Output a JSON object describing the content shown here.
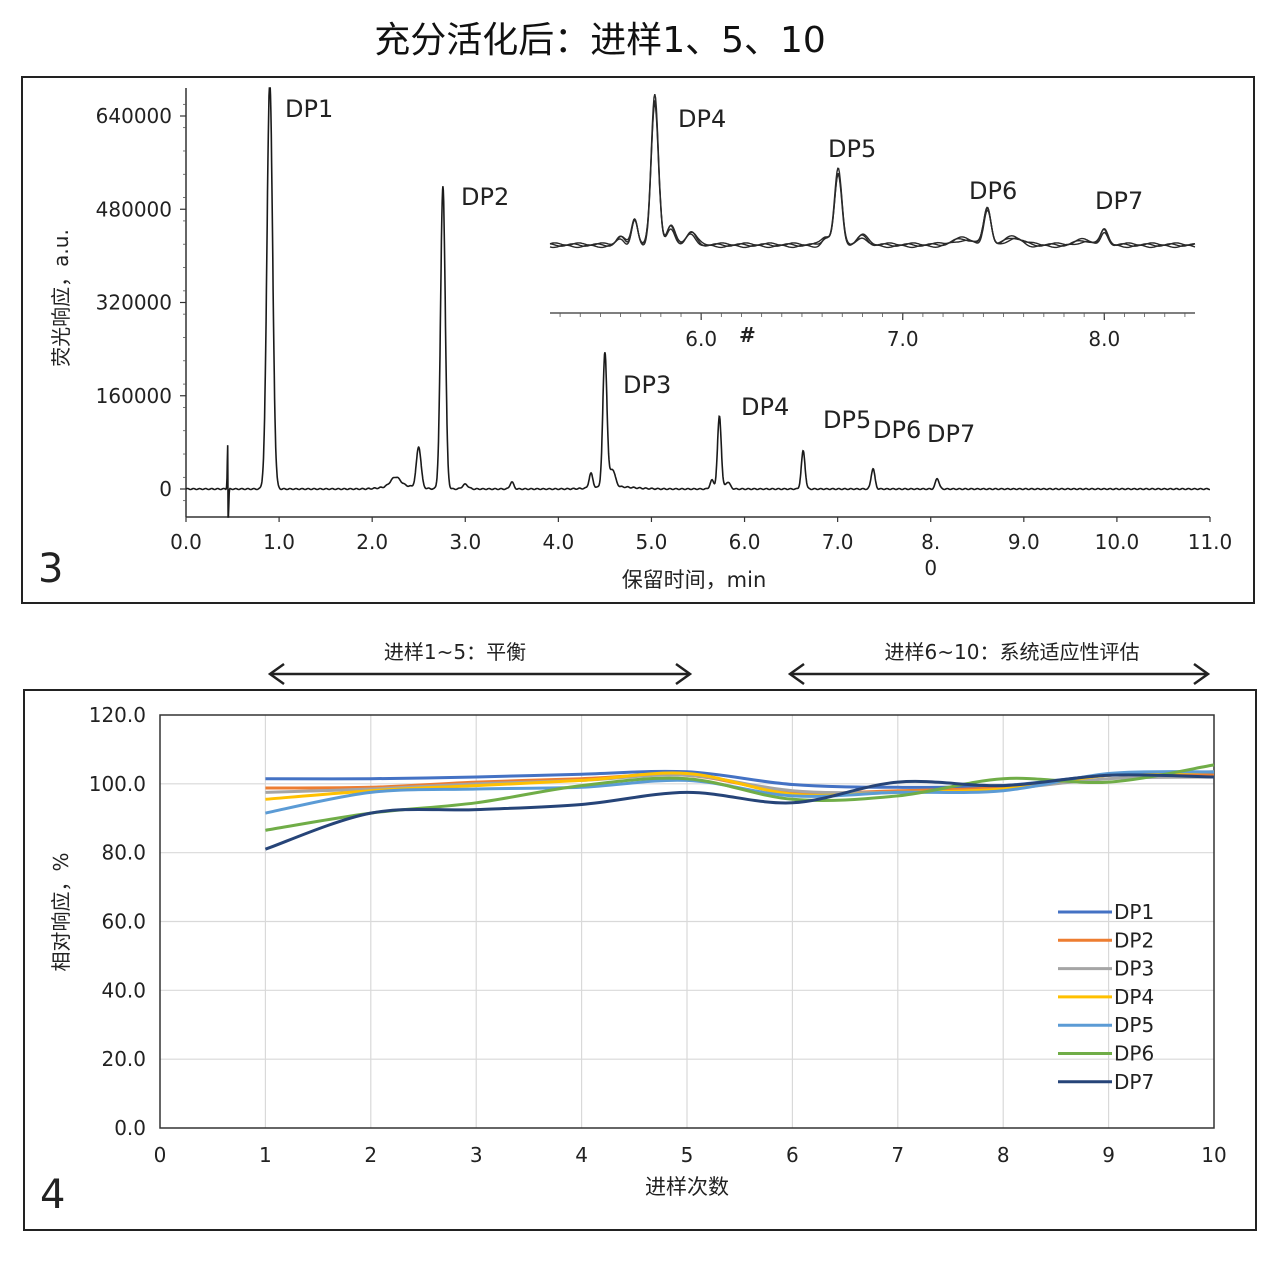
{
  "title": "充分活化后：进样1、5、10",
  "chart_data": [
    {
      "type": "line",
      "panel_label": "3",
      "xlabel": "保留时间，min",
      "ylabel": "荧光响应，a.u.",
      "xlim": [
        0,
        11
      ],
      "ylim": [
        -30000,
        700000
      ],
      "x_ticks": [
        "0.0",
        "1.0",
        "2.0",
        "3.0",
        "4.0",
        "5.0",
        "6.0",
        "7.0",
        "8.\n0",
        "9.0",
        "10.0",
        "11.0"
      ],
      "y_ticks": [
        "640000",
        "480000",
        "320000",
        "160000",
        "0"
      ],
      "y_tick_values": [
        640000,
        480000,
        320000,
        160000,
        0
      ],
      "baseline": 0,
      "peaks": [
        {
          "label": "DP1",
          "x": 0.9,
          "y": 700000,
          "width": 0.03
        },
        {
          "label": "DP2",
          "x": 2.76,
          "y": 520000,
          "width": 0.025
        },
        {
          "label": "DP3",
          "x": 4.5,
          "y": 230000,
          "width": 0.022
        },
        {
          "label": "DP4",
          "x": 5.73,
          "y": 125000,
          "width": 0.02
        },
        {
          "label": "DP5",
          "x": 6.63,
          "y": 65000,
          "width": 0.02
        },
        {
          "label": "DP6",
          "x": 7.38,
          "y": 35000,
          "width": 0.02
        },
        {
          "label": "DP7",
          "x": 8.07,
          "y": 18000,
          "width": 0.02
        }
      ],
      "minor_peaks": [
        {
          "x": 2.5,
          "y": 70000,
          "width": 0.025
        },
        {
          "x": 2.25,
          "y": 15000,
          "width": 0.05
        },
        {
          "x": 3.0,
          "y": 8000,
          "width": 0.03
        },
        {
          "x": 3.5,
          "y": 12000,
          "width": 0.02
        },
        {
          "x": 4.35,
          "y": 25000,
          "width": 0.02
        },
        {
          "x": 4.58,
          "y": 30000,
          "width": 0.03
        },
        {
          "x": 5.65,
          "y": 15000,
          "width": 0.02
        },
        {
          "x": 5.82,
          "y": 12000,
          "width": 0.025
        }
      ],
      "inset": {
        "x_ticks": [
          "6.0",
          "7.0",
          "8.0"
        ],
        "x_tick_values": [
          6.0,
          7.0,
          8.0
        ],
        "xlim": [
          5.25,
          8.45
        ],
        "marker": "#",
        "peaks": [
          {
            "label": "DP4",
            "x": 5.77,
            "y": 1.0
          },
          {
            "label": "DP5",
            "x": 6.68,
            "y": 0.5
          },
          {
            "label": "DP6",
            "x": 7.42,
            "y": 0.25
          },
          {
            "label": "DP7",
            "x": 8.0,
            "y": 0.1
          }
        ]
      }
    },
    {
      "type": "line",
      "panel_label": "4",
      "xlabel": "进样次数",
      "ylabel": "相对响应，%",
      "xlim": [
        0,
        10
      ],
      "ylim": [
        0,
        120
      ],
      "x_ticks": [
        "0",
        "1",
        "2",
        "3",
        "4",
        "5",
        "6",
        "7",
        "8",
        "9",
        "10"
      ],
      "y_ticks": [
        "120.0",
        "100.0",
        "80.0",
        "60.0",
        "40.0",
        "20.0",
        "0.0"
      ],
      "y_tick_values": [
        120,
        100,
        80,
        60,
        40,
        20,
        0
      ],
      "grid": true,
      "legend_position": "right",
      "x": [
        1,
        2,
        3,
        4,
        5,
        6,
        7,
        8,
        9,
        10
      ],
      "series": [
        {
          "name": "DP1",
          "color": "#4472c4",
          "values": [
            101.5,
            101.5,
            102.0,
            102.8,
            103.5,
            99.8,
            99.0,
            99.5,
            102.5,
            102.8
          ]
        },
        {
          "name": "DP2",
          "color": "#ed7d31",
          "values": [
            98.8,
            99.0,
            100.5,
            101.5,
            102.5,
            97.5,
            98.0,
            99.0,
            102.5,
            102.5
          ]
        },
        {
          "name": "DP3",
          "color": "#a5a5a5",
          "values": [
            97.5,
            98.5,
            100.0,
            101.0,
            102.5,
            98.0,
            97.5,
            98.5,
            101.5,
            102.0
          ]
        },
        {
          "name": "DP4",
          "color": "#ffc000",
          "values": [
            95.5,
            98.0,
            99.5,
            101.0,
            103.0,
            97.0,
            97.5,
            98.5,
            102.5,
            103.5
          ]
        },
        {
          "name": "DP5",
          "color": "#5b9bd5",
          "values": [
            91.5,
            97.5,
            98.5,
            99.0,
            101.0,
            96.5,
            97.5,
            98.0,
            103.0,
            103.5
          ]
        },
        {
          "name": "DP6",
          "color": "#70ad47",
          "values": [
            86.5,
            91.5,
            94.5,
            99.5,
            101.5,
            95.5,
            96.5,
            101.5,
            100.5,
            105.5
          ]
        },
        {
          "name": "DP7",
          "color": "#264478",
          "values": [
            81.0,
            91.5,
            92.5,
            94.0,
            97.5,
            94.5,
            100.5,
            99.5,
            102.5,
            102.0
          ]
        }
      ],
      "range_annotations": [
        {
          "label": "进样1~5：平衡",
          "from": 1,
          "to": 5
        },
        {
          "label": "进样6~10：系统适应性评估",
          "from": 6,
          "to": 10
        }
      ]
    }
  ]
}
